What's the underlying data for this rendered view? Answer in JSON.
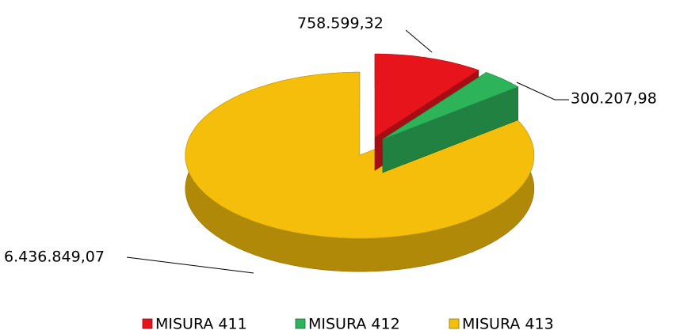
{
  "chart_data": {
    "type": "pie",
    "categories": [
      "MISURA 411",
      "MISURA 412",
      "MISURA 413"
    ],
    "values": [
      758599.32,
      300207.98,
      6436849.07
    ],
    "value_labels": [
      "758.599,32",
      "300.207,98",
      "6.436.849,07"
    ],
    "colors": [
      "#e8141b",
      "#2db35a",
      "#f5be0b"
    ],
    "legend": "bottom"
  }
}
